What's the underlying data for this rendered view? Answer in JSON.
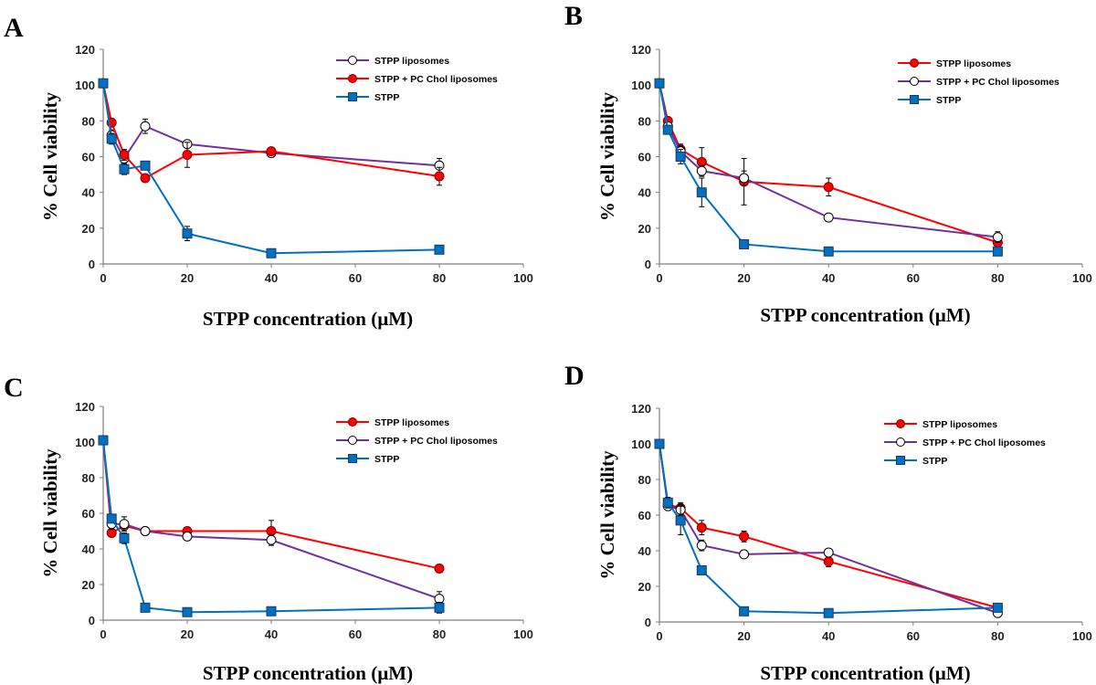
{
  "chart_data": [
    {
      "panel": "A",
      "type": "line",
      "xlabel": "STPP concentration  (µM)",
      "ylabel": "% Cell viability",
      "xlim": [
        0,
        100
      ],
      "ylim": [
        0,
        120
      ],
      "xticks": [
        0,
        20,
        40,
        60,
        80,
        100
      ],
      "yticks": [
        0,
        20,
        40,
        60,
        80,
        100,
        120
      ],
      "legend_position": "top-right",
      "series": [
        {
          "name": "STPP liposomes",
          "color": "#7030a0",
          "marker": "open-circle",
          "x": [
            0,
            2,
            5,
            10,
            20,
            40,
            80
          ],
          "y": [
            101,
            72,
            59,
            77,
            67,
            62,
            55
          ],
          "err": [
            1.5,
            3,
            3,
            4,
            2,
            2,
            4
          ]
        },
        {
          "name": "STPP + PC Chol liposomes",
          "color": "#ff0000",
          "marker": "filled-circle",
          "x": [
            0,
            2,
            5,
            10,
            20,
            40,
            80
          ],
          "y": [
            101,
            79,
            61,
            48,
            61,
            63,
            49
          ],
          "err": [
            1.5,
            2,
            3,
            2,
            7,
            2,
            5
          ]
        },
        {
          "name": "STPP",
          "color": "#0070c0",
          "marker": "square",
          "x": [
            0,
            2,
            5,
            10,
            20,
            40,
            80
          ],
          "y": [
            101,
            70,
            53,
            55,
            17,
            6,
            8
          ],
          "err": [
            1.5,
            3,
            3,
            2,
            4,
            1,
            1
          ]
        }
      ]
    },
    {
      "panel": "B",
      "type": "line",
      "xlabel": "STPP concentration  (µM)",
      "ylabel": "% Cell viability",
      "xlim": [
        0,
        100
      ],
      "ylim": [
        0,
        120
      ],
      "xticks": [
        0,
        20,
        40,
        60,
        80,
        100
      ],
      "yticks": [
        0,
        20,
        40,
        60,
        80,
        100,
        120
      ],
      "legend_position": "top-right",
      "series": [
        {
          "name": "STPP liposomes",
          "color": "#ff0000",
          "marker": "filled-circle",
          "x": [
            0,
            2,
            5,
            10,
            20,
            40,
            80
          ],
          "y": [
            101,
            80,
            64,
            57,
            46,
            43,
            12
          ],
          "err": [
            1.5,
            2,
            3,
            8,
            13,
            5,
            3
          ]
        },
        {
          "name": "STPP + PC Chol liposomes",
          "color": "#7030a0",
          "marker": "open-circle",
          "x": [
            0,
            2,
            5,
            10,
            20,
            40,
            80
          ],
          "y": [
            101,
            77,
            63,
            52,
            48,
            26,
            15
          ],
          "err": [
            1.5,
            2,
            3,
            3,
            4,
            1,
            3
          ]
        },
        {
          "name": "STPP",
          "color": "#0070c0",
          "marker": "square",
          "x": [
            0,
            2,
            5,
            10,
            20,
            40,
            80
          ],
          "y": [
            101,
            75,
            60,
            40,
            11,
            7,
            7
          ],
          "err": [
            1.5,
            2,
            4,
            8,
            1,
            1,
            1
          ]
        }
      ]
    },
    {
      "panel": "C",
      "type": "line",
      "xlabel": "STPP concentration  (µM)",
      "ylabel": "% Cell viability",
      "xlim": [
        0,
        100
      ],
      "ylim": [
        0,
        120
      ],
      "xticks": [
        0,
        20,
        40,
        60,
        80,
        100
      ],
      "yticks": [
        0,
        20,
        40,
        60,
        80,
        100,
        120
      ],
      "legend_position": "top-right",
      "series": [
        {
          "name": "STPP liposomes",
          "color": "#ff0000",
          "marker": "filled-circle",
          "x": [
            0,
            2,
            5,
            10,
            20,
            40,
            80
          ],
          "y": [
            101,
            49,
            53,
            50,
            50,
            50,
            29
          ],
          "err": [
            1.5,
            2,
            2,
            2,
            2,
            6,
            1
          ]
        },
        {
          "name": "STPP + PC Chol liposomes",
          "color": "#7030a0",
          "marker": "open-circle",
          "x": [
            0,
            2,
            5,
            10,
            20,
            40,
            80
          ],
          "y": [
            101,
            54,
            54,
            50,
            47,
            45,
            12
          ],
          "err": [
            1.5,
            3,
            4,
            2,
            2,
            3,
            4
          ]
        },
        {
          "name": "STPP",
          "color": "#0070c0",
          "marker": "square",
          "x": [
            0,
            2,
            5,
            10,
            20,
            40,
            80
          ],
          "y": [
            101,
            57,
            46,
            7,
            4.5,
            5,
            7
          ],
          "err": [
            1.5,
            2,
            3,
            1,
            1,
            1,
            3
          ]
        }
      ]
    },
    {
      "panel": "D",
      "type": "line",
      "xlabel": "STPP concentration  (µM)",
      "ylabel": "% Cell viability",
      "xlim": [
        0,
        100
      ],
      "ylim": [
        0,
        120
      ],
      "xticks": [
        0,
        20,
        40,
        60,
        80,
        100
      ],
      "yticks": [
        0,
        20,
        40,
        60,
        80,
        100,
        120
      ],
      "legend_position": "top-right",
      "series": [
        {
          "name": "STPP liposomes",
          "color": "#ff0000",
          "marker": "filled-circle",
          "x": [
            0,
            2,
            5,
            10,
            20,
            40,
            80
          ],
          "y": [
            100,
            66,
            64,
            53,
            48,
            34,
            8
          ],
          "err": [
            1.5,
            2,
            3,
            4,
            3,
            3,
            1
          ]
        },
        {
          "name": "STPP + PC Chol liposomes",
          "color": "#7030a0",
          "marker": "open-circle",
          "x": [
            0,
            2,
            5,
            10,
            20,
            40,
            80
          ],
          "y": [
            100,
            65,
            63,
            43,
            38,
            39,
            5
          ],
          "err": [
            1.5,
            2,
            3,
            3,
            1,
            1,
            1
          ]
        },
        {
          "name": "STPP",
          "color": "#0070c0",
          "marker": "square",
          "x": [
            0,
            2,
            5,
            10,
            20,
            40,
            80
          ],
          "y": [
            100,
            67,
            57,
            29,
            6,
            5,
            8
          ],
          "err": [
            1.5,
            3,
            8,
            1,
            1,
            1,
            1
          ]
        }
      ]
    }
  ]
}
